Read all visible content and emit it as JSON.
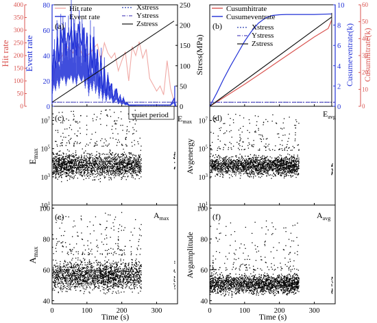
{
  "colors": {
    "hit": "#d9534f",
    "hit_light": "#f0a9a5",
    "event": "#1f2fd6",
    "stress": "#111111",
    "xstress": "#2a3fb0",
    "ystress": "#5a4fc0",
    "points": "#000000"
  },
  "chart_data": [
    {
      "panel": "a",
      "tag": "(a)",
      "type": "line",
      "xlim": [
        0,
        360
      ],
      "xticks": [
        "0",
        "100",
        "200",
        "300"
      ],
      "axes": {
        "hit": {
          "label": "Hit rate",
          "ylim": [
            0,
            400
          ],
          "ticks": [
            "0",
            "50",
            "100",
            "150",
            "200",
            "250",
            "300",
            "350",
            "400"
          ]
        },
        "event": {
          "label": "Event rate",
          "ylim": [
            0,
            80
          ],
          "ticks": [
            "0",
            "20",
            "40",
            "60",
            "80"
          ]
        },
        "stress": {
          "label": "Stress(MPa)",
          "ylim": [
            0,
            250
          ],
          "ticks": [
            "0",
            "50",
            "100",
            "150",
            "200",
            "250"
          ]
        }
      },
      "series": [
        {
          "name": "Hit rate",
          "axis": "hit",
          "color": "#f0a9a5",
          "x": [
            0,
            10,
            20,
            30,
            40,
            50,
            60,
            70,
            80,
            90,
            100,
            110,
            120,
            130,
            140,
            150,
            160,
            170,
            180,
            190,
            200,
            210,
            220,
            230,
            240,
            250,
            260,
            270,
            280,
            290,
            300,
            310,
            320,
            330,
            340,
            350
          ],
          "y": [
            70,
            165,
            185,
            200,
            240,
            225,
            210,
            250,
            225,
            195,
            200,
            210,
            230,
            245,
            180,
            250,
            210,
            190,
            210,
            140,
            180,
            215,
            100,
            235,
            200,
            255,
            190,
            225,
            110,
            85,
            60,
            80,
            45,
            180,
            70,
            20
          ]
        },
        {
          "name": "Event rate",
          "axis": "event",
          "color": "#1f2fd6",
          "x": [
            0,
            5,
            10,
            15,
            20,
            25,
            30,
            35,
            40,
            45,
            50,
            55,
            60,
            65,
            70,
            75,
            80,
            85,
            90,
            95,
            100,
            105,
            110,
            115,
            120,
            125,
            130,
            135,
            140,
            145,
            150,
            155,
            160,
            165,
            170,
            175,
            180,
            185,
            190,
            195,
            200,
            205,
            210,
            215,
            220,
            230,
            240,
            260,
            300,
            340,
            350,
            355
          ],
          "y": [
            20,
            45,
            30,
            55,
            35,
            60,
            50,
            62,
            40,
            58,
            52,
            63,
            45,
            60,
            40,
            65,
            55,
            48,
            62,
            35,
            58,
            20,
            50,
            30,
            55,
            25,
            45,
            15,
            40,
            10,
            30,
            8,
            25,
            12,
            18,
            6,
            10,
            14,
            4,
            8,
            3,
            6,
            2,
            3,
            1,
            1,
            1,
            1,
            1,
            1,
            6,
            0
          ]
        },
        {
          "name": "Xstress",
          "axis": "stress",
          "color": "#2a3fb0",
          "dashed": true,
          "x": [
            0,
            360
          ],
          "y": [
            10,
            10
          ]
        },
        {
          "name": "Ystress",
          "axis": "stress",
          "color": "#5a4fc0",
          "dashed": true,
          "x": [
            0,
            360
          ],
          "y": [
            10,
            10
          ]
        },
        {
          "name": "Zstress",
          "axis": "stress",
          "color": "#111111",
          "x": [
            0,
            350
          ],
          "y": [
            10,
            210
          ]
        }
      ],
      "annotations": [
        "quiet period",
        "E",
        "max"
      ]
    },
    {
      "panel": "b",
      "tag": "(b)",
      "type": "line",
      "xlim": [
        0,
        360
      ],
      "xticks": [
        "0",
        "100",
        "200",
        "300"
      ],
      "axes": {
        "event": {
          "label": "Cusumeventrate(k)",
          "ylim": [
            0,
            10
          ],
          "ticks": [
            "0",
            "2",
            "4",
            "6",
            "8",
            "10"
          ]
        },
        "hit": {
          "label": "Cusumhitrate(k)",
          "ylim": [
            0,
            60
          ],
          "ticks": [
            "0",
            "10",
            "20",
            "30",
            "40",
            "50",
            "60"
          ]
        }
      },
      "series": [
        {
          "name": "Cusumhitrate",
          "axis": "hit",
          "color": "#d9534f",
          "x": [
            0,
            50,
            100,
            150,
            200,
            250,
            300,
            340,
            350
          ],
          "y": [
            0,
            6.5,
            13,
            20,
            27,
            34,
            41,
            46,
            51
          ]
        },
        {
          "name": "Cusumeventrate",
          "axis": "event",
          "color": "#1f2fd6",
          "x": [
            0,
            20,
            40,
            60,
            80,
            100,
            120,
            140,
            160,
            180,
            200,
            220,
            250,
            300,
            350
          ],
          "y": [
            0,
            1.3,
            2.7,
            4.0,
            5.2,
            6.4,
            7.4,
            8.2,
            8.7,
            8.95,
            9.02,
            9.05,
            9.05,
            9.05,
            9.1
          ]
        },
        {
          "name": "Xstress",
          "axis": "event",
          "color": "#2a3fb0",
          "dashed": true,
          "x": [
            0,
            360
          ],
          "y": [
            0.4,
            0.4
          ]
        },
        {
          "name": "Ystress",
          "axis": "event",
          "color": "#5a4fc0",
          "dashed": true,
          "x": [
            0,
            360
          ],
          "y": [
            0.4,
            0.4
          ]
        },
        {
          "name": "Zstress",
          "axis": "event",
          "color": "#111111",
          "x": [
            0,
            350
          ],
          "y": [
            0,
            8.8
          ]
        }
      ],
      "annotations": [
        "E",
        "avg"
      ]
    },
    {
      "panel": "c",
      "tag": "(c)",
      "type": "scatter",
      "yscale": "log",
      "xlim": [
        0,
        360
      ],
      "ylim_exp": [
        1,
        8
      ],
      "ylabel": "E",
      "ylabel_sub": "max",
      "yticks": [
        {
          "base": "10",
          "exp": "1"
        },
        {
          "base": "10",
          "exp": "3"
        },
        {
          "base": "10",
          "exp": "5"
        },
        {
          "base": "10",
          "exp": "7"
        }
      ],
      "cloud": {
        "x": [
          0,
          255
        ],
        "dense_exp": [
          2.6,
          5.1
        ],
        "sparse_exp": [
          5.2,
          7.8
        ]
      },
      "late_x": 350,
      "late_exp": [
        3.5,
        4.8
      ]
    },
    {
      "panel": "d",
      "tag": "(d)",
      "type": "scatter",
      "yscale": "log",
      "xlim": [
        0,
        360
      ],
      "ylim_exp": [
        1,
        8
      ],
      "ylabel": "Avgenergy",
      "yticks": [
        {
          "base": "10",
          "exp": "1"
        },
        {
          "base": "10",
          "exp": "3"
        },
        {
          "base": "10",
          "exp": "5"
        },
        {
          "base": "10",
          "exp": "7"
        }
      ],
      "cloud": {
        "x": [
          0,
          255
        ],
        "dense_exp": [
          2.8,
          4.8
        ],
        "sparse_exp": [
          4.9,
          7.5
        ]
      },
      "late_x": 350,
      "late_exp": [
        3.0,
        4.0
      ]
    },
    {
      "panel": "e",
      "tag": "(e)",
      "type": "scatter",
      "xlim": [
        0,
        360
      ],
      "xticks": [
        "0",
        "100",
        "200",
        "300"
      ],
      "ylim": [
        38,
        102
      ],
      "ylabel": "A",
      "ylabel_sub": "max",
      "xlabel": "Time (s)",
      "yticks": [
        "40",
        "60",
        "80",
        "100"
      ],
      "cloud": {
        "x": [
          0,
          255
        ],
        "dense": [
          43,
          70
        ],
        "sparse": [
          70,
          98
        ]
      },
      "late_x": 350,
      "late": [
        45,
        68
      ],
      "annotation": [
        "A",
        "max"
      ]
    },
    {
      "panel": "f",
      "tag": "(f)",
      "type": "scatter",
      "xlim": [
        0,
        360
      ],
      "xticks": [
        "0",
        "100",
        "200",
        "300"
      ],
      "ylim": [
        38,
        102
      ],
      "ylabel": "Avgamplitude",
      "xlabel": "Time (s)",
      "yticks": [
        "40",
        "60",
        "80",
        "100"
      ],
      "cloud": {
        "x": [
          0,
          255
        ],
        "dense": [
          42,
          60
        ],
        "sparse": [
          60,
          92
        ]
      },
      "late_x": 350,
      "late": [
        45,
        56
      ],
      "annotation": [
        "A",
        "avg"
      ]
    }
  ]
}
